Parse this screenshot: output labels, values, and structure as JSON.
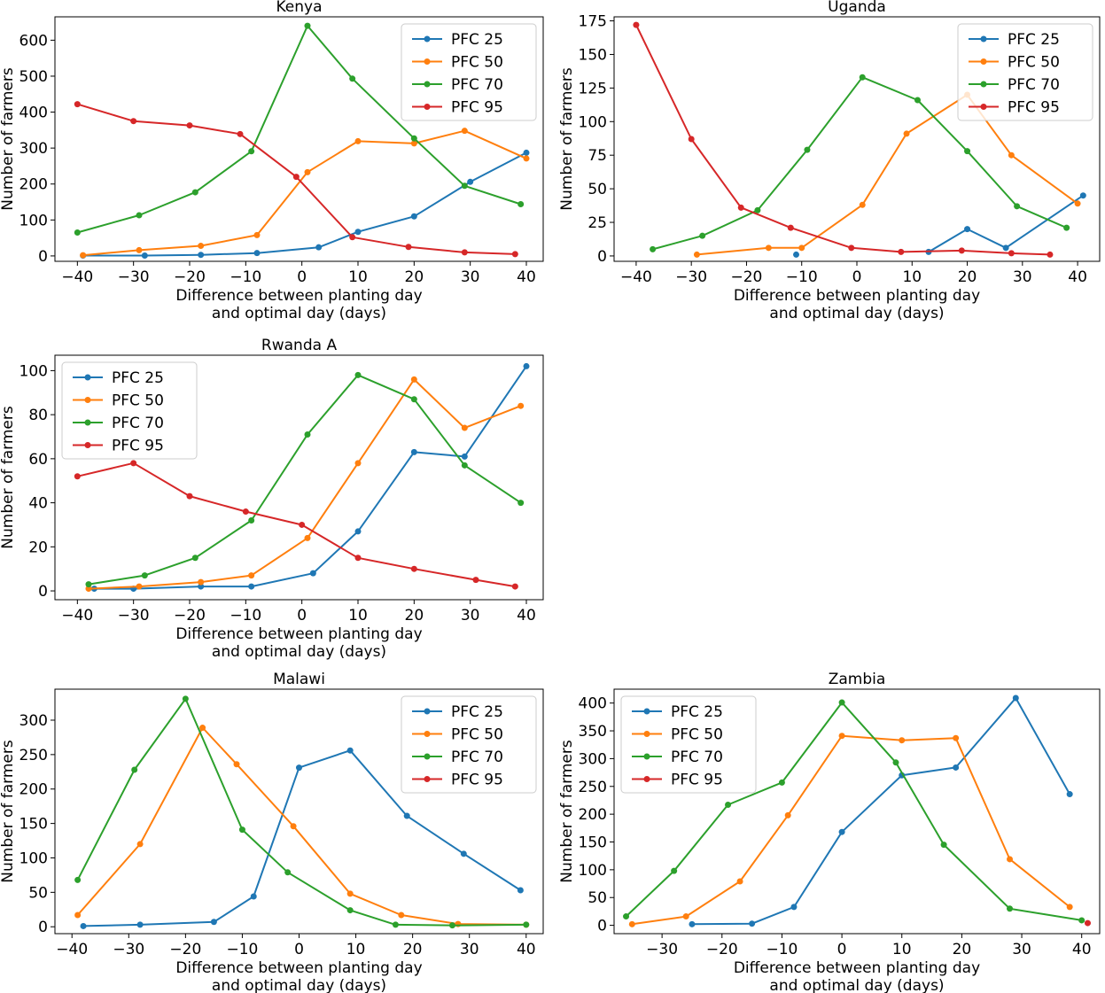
{
  "figure": {
    "colors": {
      "PFC 25": "#1f77b4",
      "PFC 50": "#ff7f0e",
      "PFC 70": "#2ca02c",
      "PFC 95": "#d62728"
    }
  },
  "chart_data": [
    {
      "type": "line",
      "title": "Kenya",
      "xlabel": [
        "Difference between planting day",
        "and optimal day (days)"
      ],
      "ylabel": "Number of farmers",
      "xlim": [
        -44,
        43
      ],
      "ylim": [
        -15,
        665
      ],
      "xticks": [
        -40,
        -30,
        -20,
        -10,
        0,
        10,
        20,
        30,
        40
      ],
      "yticks": [
        0,
        100,
        200,
        300,
        400,
        500,
        600
      ],
      "legend_loc": "upper-right",
      "series": [
        {
          "name": "PFC 25",
          "x": [
            -39,
            -28,
            -18,
            -8,
            3,
            10,
            20,
            30,
            40
          ],
          "y": [
            1,
            1,
            3,
            8,
            24,
            67,
            110,
            206,
            287
          ]
        },
        {
          "name": "PFC 50",
          "x": [
            -39,
            -29,
            -18,
            -8,
            1,
            10,
            20,
            29,
            40
          ],
          "y": [
            2,
            16,
            28,
            58,
            233,
            319,
            313,
            348,
            271
          ]
        },
        {
          "name": "PFC 70",
          "x": [
            -40,
            -29,
            -19,
            -9,
            1,
            9,
            20,
            29,
            39
          ],
          "y": [
            65,
            113,
            177,
            291,
            640,
            493,
            327,
            195,
            144
          ]
        },
        {
          "name": "PFC 95",
          "x": [
            -40,
            -30,
            -20,
            -11,
            -1,
            9,
            19,
            29,
            38
          ],
          "y": [
            422,
            375,
            363,
            339,
            220,
            52,
            25,
            10,
            5
          ]
        }
      ]
    },
    {
      "type": "line",
      "title": "Uganda",
      "xlabel": [
        "Difference between planting day",
        "and optimal day (days)"
      ],
      "ylabel": "Number of farmers",
      "xlim": [
        -44,
        44
      ],
      "ylim": [
        -4,
        178
      ],
      "xticks": [
        -40,
        -30,
        -20,
        -10,
        0,
        10,
        20,
        30,
        40
      ],
      "yticks": [
        0,
        25,
        50,
        75,
        100,
        125,
        150,
        175
      ],
      "legend_loc": "upper-right",
      "series": [
        {
          "name": "PFC 25",
          "x": [
            -11
          ],
          "y": [
            1
          ],
          "x2": [
            13,
            20,
            27,
            41
          ],
          "y2": [
            3,
            20,
            6,
            45
          ]
        },
        {
          "name": "PFC 50",
          "x": [
            -29,
            -16,
            -10,
            1,
            9,
            20,
            28,
            40
          ],
          "y": [
            1,
            6,
            6,
            38,
            91,
            120,
            75,
            39
          ]
        },
        {
          "name": "PFC 70",
          "x": [
            -37,
            -28,
            -18,
            -9,
            1,
            11,
            20,
            29,
            38
          ],
          "y": [
            5,
            15,
            34,
            79,
            133,
            116,
            78,
            37,
            21
          ]
        },
        {
          "name": "PFC 95",
          "x": [
            -40,
            -30,
            -21,
            -12,
            -1,
            8,
            19,
            28,
            35
          ],
          "y": [
            172,
            87,
            36,
            21,
            6,
            3,
            4,
            2,
            1
          ]
        }
      ]
    },
    {
      "type": "line",
      "title": "Rwanda A",
      "xlabel": [
        "Difference between planting day",
        "and optimal day (days)"
      ],
      "ylabel": "Number of farmers",
      "xlim": [
        -44,
        43
      ],
      "ylim": [
        -4,
        107
      ],
      "xticks": [
        -40,
        -30,
        -20,
        -10,
        0,
        10,
        20,
        30,
        40
      ],
      "yticks": [
        0,
        20,
        40,
        60,
        80,
        100
      ],
      "legend_loc": "upper-left",
      "series": [
        {
          "name": "PFC 25",
          "x": [
            -37,
            -30,
            -18,
            -9,
            2,
            10,
            20,
            29,
            40
          ],
          "y": [
            1,
            1,
            2,
            2,
            8,
            27,
            63,
            61,
            102
          ]
        },
        {
          "name": "PFC 50",
          "x": [
            -38,
            -29,
            -18,
            -9,
            1,
            10,
            20,
            29,
            39
          ],
          "y": [
            1,
            2,
            4,
            7,
            24,
            58,
            96,
            74,
            84
          ]
        },
        {
          "name": "PFC 70",
          "x": [
            -38,
            -28,
            -19,
            -9,
            1,
            10,
            20,
            29,
            39
          ],
          "y": [
            3,
            7,
            15,
            32,
            71,
            98,
            87,
            57,
            40
          ]
        },
        {
          "name": "PFC 95",
          "x": [
            -40,
            -30,
            -20,
            -10,
            0,
            10,
            20,
            31,
            38
          ],
          "y": [
            52,
            58,
            43,
            36,
            30,
            15,
            10,
            5,
            2
          ]
        }
      ]
    },
    {
      "type": "line",
      "title": "Malawi",
      "xlabel": [
        "Difference between planting day",
        "and optimal day (days)"
      ],
      "ylabel": "Number of farmers",
      "xlim": [
        -43,
        43
      ],
      "ylim": [
        -10,
        345
      ],
      "xticks": [
        -40,
        -30,
        -20,
        -10,
        0,
        10,
        20,
        30,
        40
      ],
      "yticks": [
        0,
        50,
        100,
        150,
        200,
        250,
        300
      ],
      "legend_loc": "upper-right",
      "series": [
        {
          "name": "PFC 25",
          "x": [
            -38,
            -28,
            -15,
            -8,
            0,
            9,
            19,
            29,
            39
          ],
          "y": [
            1,
            3,
            7,
            44,
            231,
            256,
            161,
            106,
            53
          ]
        },
        {
          "name": "PFC 50",
          "x": [
            -39,
            -28,
            -17,
            -11,
            -1,
            9,
            18,
            28,
            40
          ],
          "y": [
            17,
            120,
            289,
            236,
            146,
            48,
            17,
            4,
            3
          ]
        },
        {
          "name": "PFC 70",
          "x": [
            -39,
            -29,
            -20,
            -10,
            -2,
            9,
            17,
            27,
            40
          ],
          "y": [
            68,
            228,
            331,
            141,
            79,
            24,
            3,
            2,
            3
          ]
        },
        {
          "name": "PFC 95",
          "x": [],
          "y": []
        }
      ]
    },
    {
      "type": "line",
      "title": "Zambia",
      "xlabel": [
        "Difference between planting day",
        "and optimal day (days)"
      ],
      "ylabel": "Number of farmers",
      "xlim": [
        -38,
        43
      ],
      "ylim": [
        -15,
        425
      ],
      "xticks": [
        -30,
        -20,
        -10,
        0,
        10,
        20,
        30,
        40
      ],
      "yticks": [
        0,
        50,
        100,
        150,
        200,
        250,
        300,
        350,
        400
      ],
      "legend_loc": "upper-left",
      "series": [
        {
          "name": "PFC 25",
          "x": [
            -25,
            -15,
            -8,
            0,
            10,
            19,
            29,
            38
          ],
          "y": [
            2,
            3,
            33,
            168,
            270,
            284,
            409,
            236
          ]
        },
        {
          "name": "PFC 50",
          "x": [
            -35,
            -26,
            -17,
            -9,
            0,
            10,
            19,
            28,
            38
          ],
          "y": [
            2,
            16,
            79,
            198,
            341,
            333,
            337,
            119,
            33
          ]
        },
        {
          "name": "PFC 70",
          "x": [
            -36,
            -28,
            -19,
            -10,
            0,
            9,
            17,
            28,
            40
          ],
          "y": [
            16,
            98,
            217,
            257,
            401,
            293,
            145,
            30,
            9
          ]
        },
        {
          "name": "PFC 95",
          "x": [
            41
          ],
          "y": [
            4
          ],
          "markers_only": true
        }
      ]
    }
  ]
}
